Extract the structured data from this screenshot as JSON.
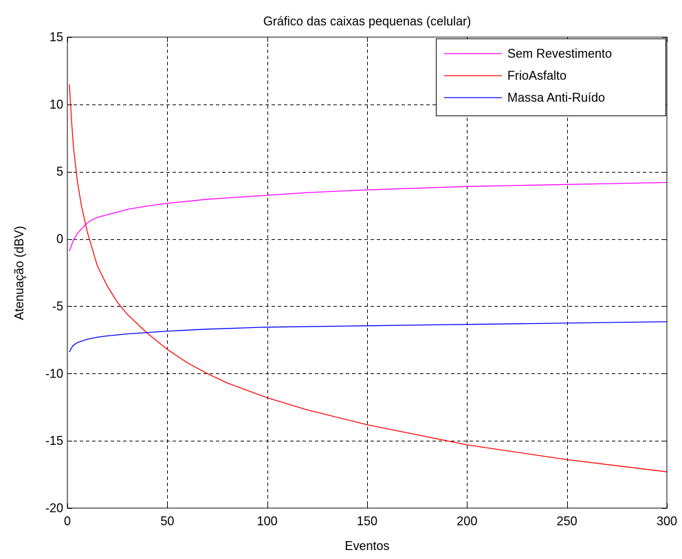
{
  "chart_data": {
    "type": "line",
    "title": "Gráfico das caixas pequenas (celular)",
    "xlabel": "Eventos",
    "ylabel": "Atenuação (dBV)",
    "xlim": [
      0,
      300
    ],
    "ylim": [
      -20,
      15
    ],
    "xticks": [
      0,
      50,
      100,
      150,
      200,
      250,
      300
    ],
    "yticks": [
      -20,
      -15,
      -10,
      -5,
      0,
      5,
      10,
      15
    ],
    "grid": true,
    "legend_position": "top-right",
    "series": [
      {
        "name": "Sem Revestimento",
        "color": "#ff00ff",
        "x": [
          1,
          2,
          3,
          5,
          8,
          10,
          12,
          15,
          20,
          25,
          30,
          40,
          50,
          60,
          70,
          80,
          100,
          120,
          150,
          180,
          200,
          250,
          300
        ],
        "y": [
          -0.9,
          -0.5,
          -0.1,
          0.4,
          0.9,
          1.2,
          1.4,
          1.6,
          1.8,
          2.0,
          2.2,
          2.45,
          2.65,
          2.8,
          2.95,
          3.05,
          3.25,
          3.45,
          3.65,
          3.8,
          3.9,
          4.05,
          4.2
        ]
      },
      {
        "name": "FrioAsfalto",
        "color": "#ff0000",
        "x": [
          1,
          2,
          3,
          5,
          7,
          10,
          15,
          20,
          25,
          30,
          40,
          50,
          60,
          70,
          80,
          100,
          120,
          150,
          180,
          200,
          250,
          300
        ],
        "y": [
          11.5,
          9.0,
          6.9,
          4.3,
          2.5,
          0.5,
          -2.0,
          -3.5,
          -4.7,
          -5.6,
          -7.0,
          -8.2,
          -9.2,
          -10.0,
          -10.7,
          -11.8,
          -12.7,
          -13.8,
          -14.7,
          -15.3,
          -16.4,
          -17.3
        ]
      },
      {
        "name": "Massa Anti-Ruído",
        "color": "#0000ff",
        "x": [
          1,
          2,
          3,
          5,
          8,
          10,
          15,
          20,
          30,
          40,
          50,
          70,
          100,
          150,
          200,
          250,
          300
        ],
        "y": [
          -8.4,
          -8.1,
          -7.9,
          -7.7,
          -7.55,
          -7.45,
          -7.3,
          -7.2,
          -7.05,
          -6.95,
          -6.85,
          -6.7,
          -6.55,
          -6.45,
          -6.35,
          -6.25,
          -6.15
        ]
      }
    ]
  }
}
